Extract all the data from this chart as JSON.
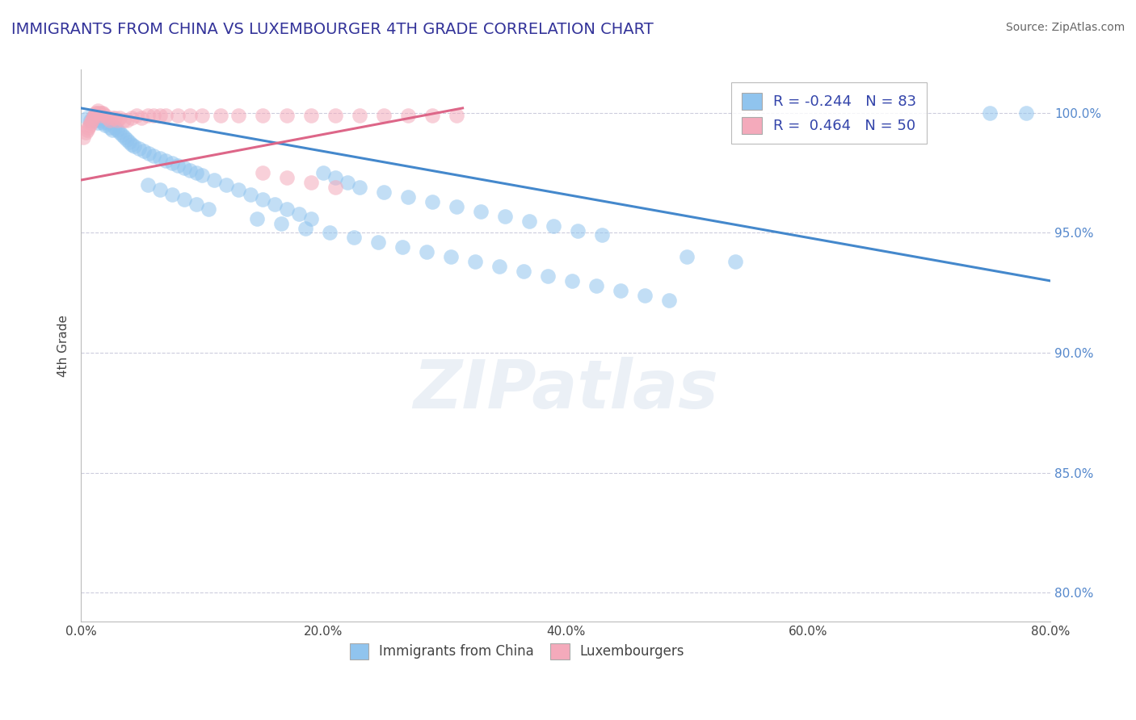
{
  "title": "IMMIGRANTS FROM CHINA VS LUXEMBOURGER 4TH GRADE CORRELATION CHART",
  "source_text": "Source: ZipAtlas.com",
  "ylabel": "4th Grade",
  "xlim": [
    0.0,
    0.8
  ],
  "ylim": [
    0.788,
    1.018
  ],
  "xlabel_vals": [
    0.0,
    0.2,
    0.4,
    0.6,
    0.8
  ],
  "xlabel_labels": [
    "0.0%",
    "20.0%",
    "40.0%",
    "60.0%",
    "80.0%"
  ],
  "ylabel_vals": [
    0.8,
    0.85,
    0.9,
    0.95,
    1.0
  ],
  "ylabel_labels": [
    "80.0%",
    "85.0%",
    "90.0%",
    "95.0%",
    "100.0%"
  ],
  "legend_blue_r": "R = -0.244",
  "legend_blue_n": "N = 83",
  "legend_pink_r": "R =  0.464",
  "legend_pink_n": "N = 50",
  "blue_color": "#90C4EE",
  "pink_color": "#F4AABB",
  "blue_line_color": "#4488CC",
  "pink_line_color": "#DD6688",
  "blue_trend": [
    0.0,
    0.8,
    1.002,
    0.93
  ],
  "pink_trend": [
    0.0,
    0.315,
    0.972,
    1.002
  ],
  "blue_scatter_x": [
    0.005,
    0.008,
    0.01,
    0.012,
    0.014,
    0.016,
    0.018,
    0.02,
    0.022,
    0.024,
    0.026,
    0.028,
    0.03,
    0.032,
    0.034,
    0.036,
    0.038,
    0.04,
    0.042,
    0.044,
    0.048,
    0.052,
    0.056,
    0.06,
    0.065,
    0.07,
    0.075,
    0.08,
    0.085,
    0.09,
    0.095,
    0.1,
    0.11,
    0.12,
    0.13,
    0.14,
    0.15,
    0.16,
    0.17,
    0.18,
    0.19,
    0.2,
    0.21,
    0.22,
    0.23,
    0.25,
    0.27,
    0.29,
    0.31,
    0.33,
    0.35,
    0.37,
    0.39,
    0.41,
    0.43,
    0.5,
    0.54,
    0.75,
    0.78,
    0.055,
    0.065,
    0.075,
    0.085,
    0.095,
    0.105,
    0.145,
    0.165,
    0.185,
    0.205,
    0.225,
    0.245,
    0.265,
    0.285,
    0.305,
    0.325,
    0.345,
    0.365,
    0.385,
    0.405,
    0.425,
    0.445,
    0.465,
    0.485
  ],
  "blue_scatter_y": [
    0.998,
    0.997,
    0.998,
    0.997,
    0.996,
    0.997,
    0.996,
    0.995,
    0.996,
    0.994,
    0.993,
    0.994,
    0.993,
    0.992,
    0.991,
    0.99,
    0.989,
    0.988,
    0.987,
    0.986,
    0.985,
    0.984,
    0.983,
    0.982,
    0.981,
    0.98,
    0.979,
    0.978,
    0.977,
    0.976,
    0.975,
    0.974,
    0.972,
    0.97,
    0.968,
    0.966,
    0.964,
    0.962,
    0.96,
    0.958,
    0.956,
    0.975,
    0.973,
    0.971,
    0.969,
    0.967,
    0.965,
    0.963,
    0.961,
    0.959,
    0.957,
    0.955,
    0.953,
    0.951,
    0.949,
    0.94,
    0.938,
    1.0,
    1.0,
    0.97,
    0.968,
    0.966,
    0.964,
    0.962,
    0.96,
    0.956,
    0.954,
    0.952,
    0.95,
    0.948,
    0.946,
    0.944,
    0.942,
    0.94,
    0.938,
    0.936,
    0.934,
    0.932,
    0.93,
    0.928,
    0.926,
    0.924,
    0.922
  ],
  "pink_scatter_x": [
    0.002,
    0.004,
    0.005,
    0.006,
    0.007,
    0.008,
    0.009,
    0.01,
    0.011,
    0.012,
    0.013,
    0.014,
    0.015,
    0.016,
    0.017,
    0.018,
    0.02,
    0.022,
    0.024,
    0.026,
    0.028,
    0.03,
    0.032,
    0.035,
    0.038,
    0.042,
    0.046,
    0.05,
    0.055,
    0.06,
    0.065,
    0.07,
    0.08,
    0.09,
    0.1,
    0.115,
    0.13,
    0.15,
    0.17,
    0.19,
    0.21,
    0.23,
    0.25,
    0.27,
    0.29,
    0.31,
    0.15,
    0.17,
    0.19,
    0.21
  ],
  "pink_scatter_y": [
    0.99,
    0.992,
    0.993,
    0.994,
    0.995,
    0.996,
    0.997,
    0.998,
    0.999,
    1.0,
    1.0,
    1.001,
    1.0,
    0.999,
    1.0,
    1.0,
    0.999,
    0.998,
    0.997,
    0.998,
    0.998,
    0.997,
    0.998,
    0.997,
    0.997,
    0.998,
    0.999,
    0.998,
    0.999,
    0.999,
    0.999,
    0.999,
    0.999,
    0.999,
    0.999,
    0.999,
    0.999,
    0.999,
    0.999,
    0.999,
    0.999,
    0.999,
    0.999,
    0.999,
    0.999,
    0.999,
    0.975,
    0.973,
    0.971,
    0.969
  ],
  "watermark_text": "ZIPatlas",
  "circle_size": 180
}
